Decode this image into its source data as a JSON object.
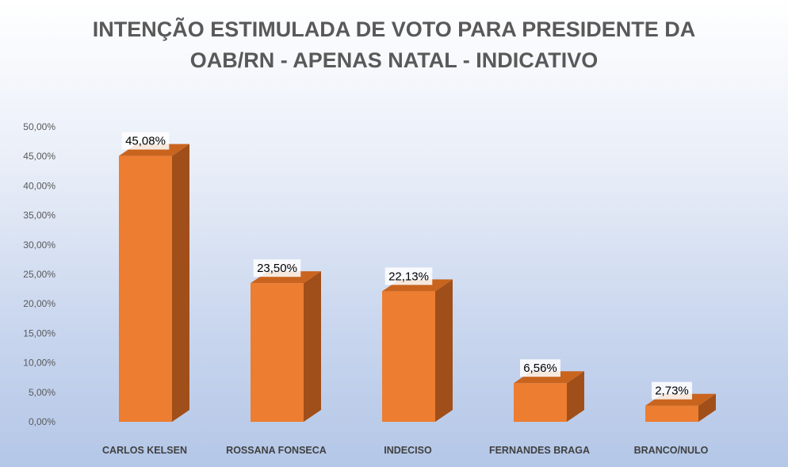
{
  "chart_data": {
    "type": "bar",
    "title_lines": [
      "INTENÇÃO ESTIMULADA DE VOTO PARA PRESIDENTE DA",
      "OAB/RN - APENAS NATAL - INDICATIVO"
    ],
    "categories": [
      "CARLOS KELSEN",
      "ROSSANA FONSECA",
      "INDECISO",
      "FERNANDES BRAGA",
      "BRANCO/NULO"
    ],
    "values": [
      45.08,
      23.5,
      22.13,
      6.56,
      2.73
    ],
    "data_labels": [
      "45,08%",
      "23,50%",
      "22,13%",
      "6,56%",
      "2,73%"
    ],
    "y_ticks": [
      "0,00%",
      "5,00%",
      "10,00%",
      "15,00%",
      "20,00%",
      "25,00%",
      "30,00%",
      "35,00%",
      "40,00%",
      "45,00%",
      "50,00%"
    ],
    "ylim": [
      0,
      50
    ],
    "grid": false,
    "style": "3d-column",
    "colors": {
      "bar_front": "#ED7D31",
      "bar_side": "#A14F1A",
      "bar_top": "#C9641E"
    }
  }
}
